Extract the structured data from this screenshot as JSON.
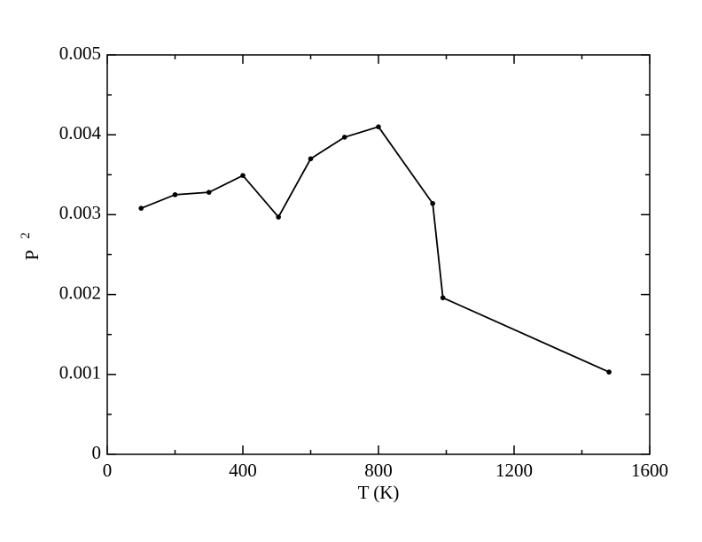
{
  "chart_data": {
    "type": "line",
    "x_label": "T (K)",
    "y_label": {
      "text": "P",
      "subscript": "2"
    },
    "x": [
      100,
      200,
      300,
      400,
      505,
      600,
      700,
      800,
      960,
      990,
      1480
    ],
    "series": [
      {
        "color": "#000000",
        "values": [
          0.00308,
          0.00325,
          0.00328,
          0.00349,
          0.00297,
          0.0037,
          0.00397,
          0.0041,
          0.00314,
          0.00196,
          0.00103
        ]
      }
    ],
    "xlim": [
      0,
      1600
    ],
    "xticks": [
      0,
      400,
      800,
      1200,
      1600
    ],
    "ylim": [
      0,
      0.005
    ],
    "yticks": [
      0,
      0.001,
      0.002,
      0.003,
      0.004,
      0.005
    ]
  }
}
